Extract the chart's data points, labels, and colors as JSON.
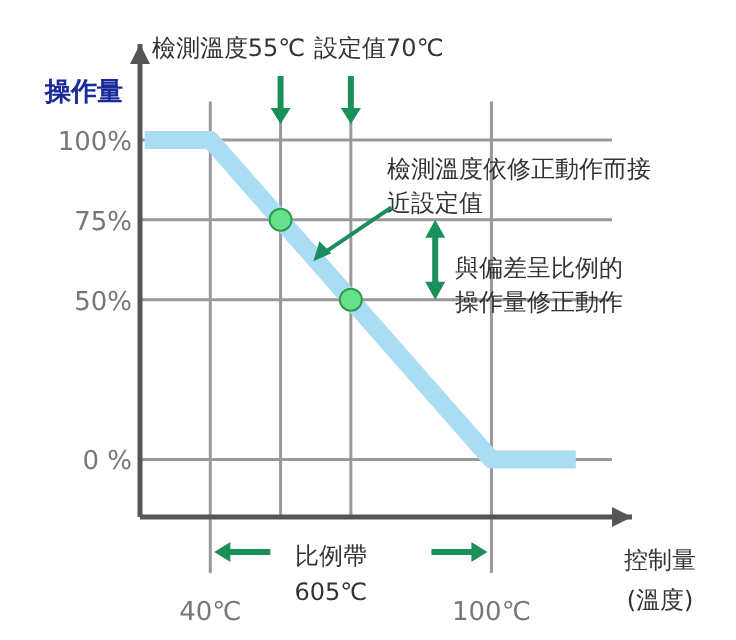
{
  "chart_data": {
    "type": "line",
    "ylabel": "操作量",
    "xlabel": "控制量 (溫度)",
    "xlim": [
      25,
      130
    ],
    "ylim": [
      -18,
      130
    ],
    "xticks": [
      {
        "value": 40,
        "label": "40℃"
      },
      {
        "value": 100,
        "label": "100℃"
      }
    ],
    "yticks": [
      {
        "value": 0,
        "label": "0 %"
      },
      {
        "value": 50,
        "label": "50%"
      },
      {
        "value": 75,
        "label": "75%"
      },
      {
        "value": 100,
        "label": "100%"
      }
    ],
    "grid": true,
    "series": [
      {
        "color": "#aadcf4",
        "x": [
          26,
          40,
          100,
          118
        ],
        "values": [
          100,
          100,
          0,
          0
        ]
      },
      {
        "type": "scatter",
        "color": "#66e08a",
        "marker": "circle",
        "x": [
          55,
          70
        ],
        "values": [
          75,
          50
        ]
      }
    ],
    "ref_lines": [
      {
        "axis": "x",
        "value": 55,
        "label": "檢測溫度55℃"
      },
      {
        "axis": "x",
        "value": 70,
        "label": "設定值70℃"
      }
    ],
    "annotations": [
      {
        "text": "檢測溫度依修正動作而接近設定值",
        "x": 62,
        "y": 62
      },
      "與偏差呈比例的操作量修正動作",
      "比例帶 605℃"
    ]
  }
}
